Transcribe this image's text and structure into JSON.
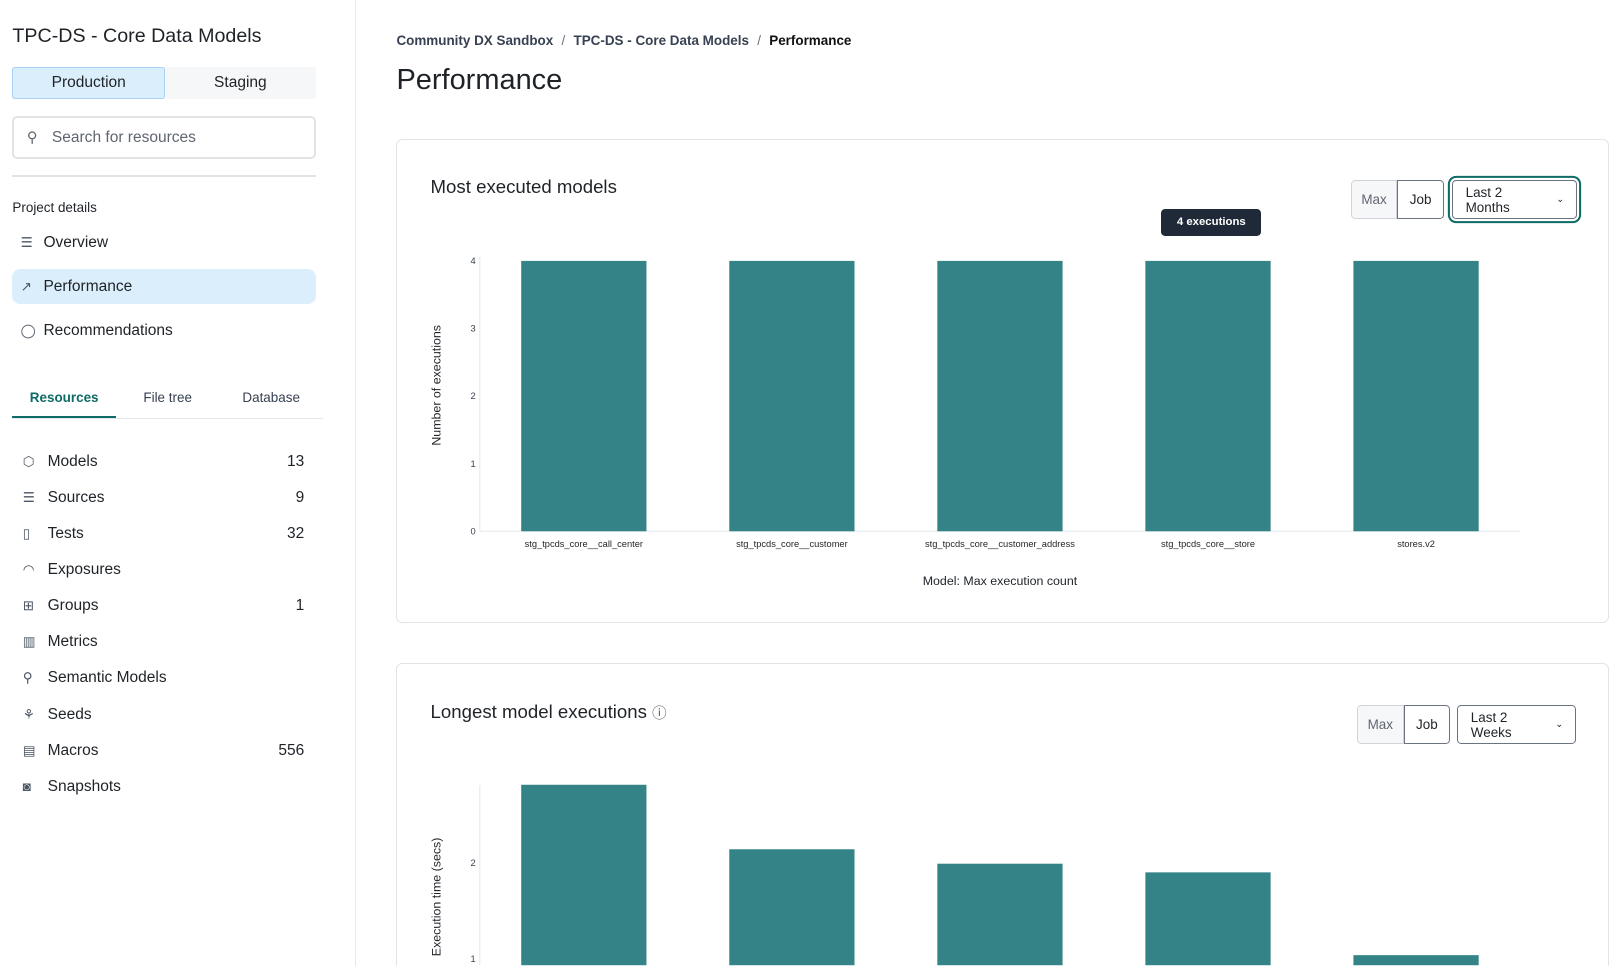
{
  "sidebar": {
    "project_title": "TPC-DS - Core Data Models",
    "env_tabs": [
      "Production",
      "Staging"
    ],
    "search_placeholder": "Search for resources",
    "section_label": "Project details",
    "nav": [
      {
        "label": "Overview",
        "icon": "list-icon"
      },
      {
        "label": "Performance",
        "icon": "line-chart-icon"
      },
      {
        "label": "Recommendations",
        "icon": "lightbulb-icon"
      }
    ],
    "tabs": [
      "Resources",
      "File tree",
      "Database"
    ],
    "resources": [
      {
        "label": "Models",
        "count": "13",
        "icon": "cube-icon"
      },
      {
        "label": "Sources",
        "count": "9",
        "icon": "database-icon"
      },
      {
        "label": "Tests",
        "count": "32",
        "icon": "clipboard-icon"
      },
      {
        "label": "Exposures",
        "count": "",
        "icon": "gauge-icon"
      },
      {
        "label": "Groups",
        "count": "1",
        "icon": "grid-icon"
      },
      {
        "label": "Metrics",
        "count": "",
        "icon": "bar-chart-icon"
      },
      {
        "label": "Semantic Models",
        "count": "",
        "icon": "graph-icon"
      },
      {
        "label": "Seeds",
        "count": "",
        "icon": "seedling-icon"
      },
      {
        "label": "Macros",
        "count": "556",
        "icon": "file-icon"
      },
      {
        "label": "Snapshots",
        "count": "",
        "icon": "camera-icon"
      }
    ]
  },
  "breadcrumb": [
    "Community DX Sandbox",
    "TPC-DS - Core Data Models",
    "Performance"
  ],
  "page_title": "Performance",
  "cards": [
    {
      "title": "Most executed models",
      "seg": [
        "Max",
        "Job"
      ],
      "range": "Last 2 Months",
      "tooltip": "4 executions"
    },
    {
      "title": "Longest model executions",
      "seg": [
        "Max",
        "Job"
      ],
      "range": "Last 2 Weeks"
    }
  ],
  "colors": {
    "bar": "#348386",
    "accent": "#0e6b66",
    "active_bg": "#dbeefc"
  },
  "chart_data": [
    {
      "type": "bar",
      "title": "Most executed models",
      "xlabel": "Model: Max execution count",
      "ylabel": "Number of executions",
      "categories": [
        "stg_tpcds_core__call_center",
        "stg_tpcds_core__customer",
        "stg_tpcds_core__customer_address",
        "stg_tpcds_core__store",
        "stores.v2"
      ],
      "values": [
        4,
        4,
        4,
        4,
        4
      ],
      "ylim": [
        0,
        4
      ],
      "yticks": [
        "0",
        "1",
        "2",
        "3",
        "4"
      ],
      "grid": false
    },
    {
      "type": "bar",
      "title": "Longest model executions",
      "ylabel": "Execution time (secs)",
      "values": [
        2.81,
        2.14,
        1.99,
        1.9,
        1.04
      ],
      "yticks": [
        "1",
        "2"
      ],
      "grid": false
    }
  ]
}
